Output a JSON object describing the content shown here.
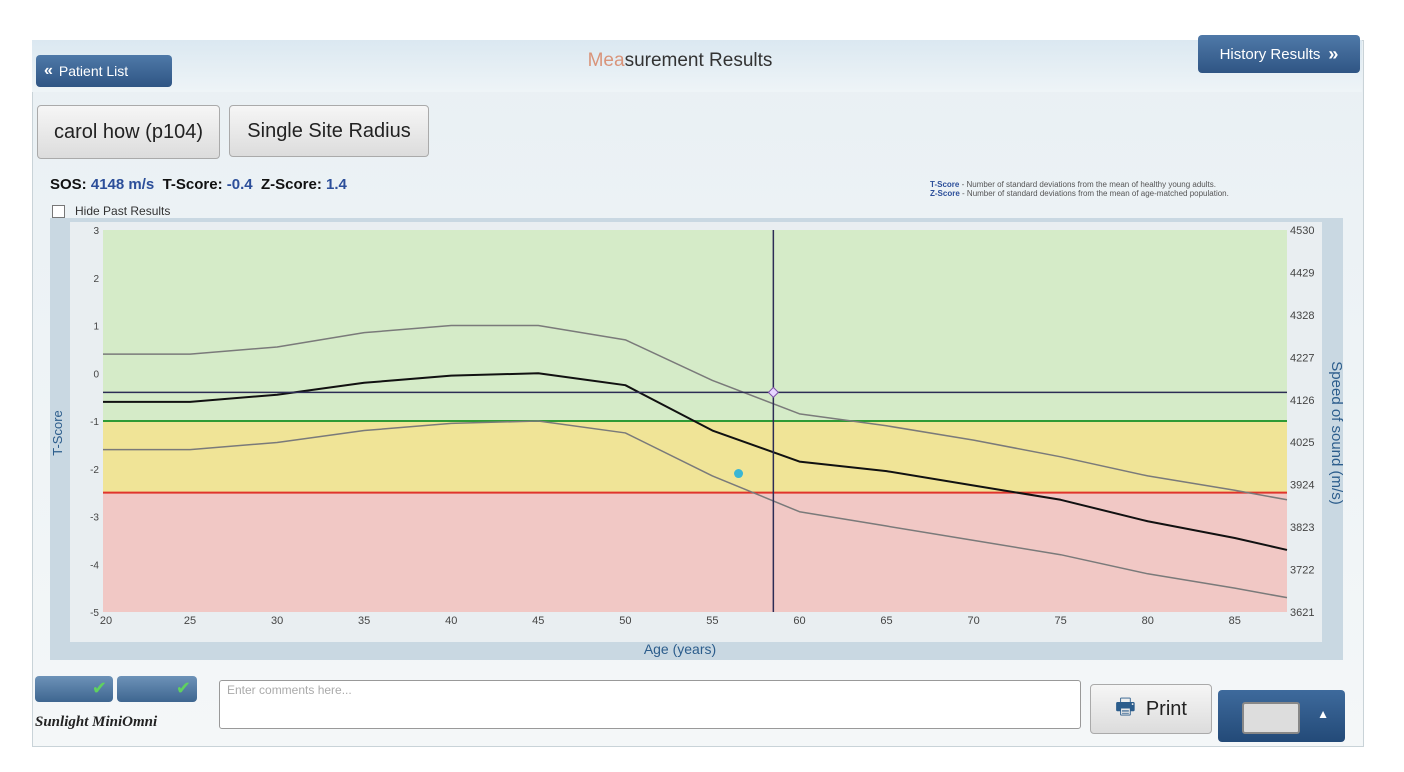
{
  "header": {
    "back_button": "Patient List",
    "title_light": "Mea",
    "title": "surement Results",
    "history_button": "History Results"
  },
  "patient": "carol how (p104)",
  "site": "Single Site Radius",
  "results": {
    "sos_label": "SOS:",
    "sos": "4148 m/s",
    "t_label": "T-Score:",
    "t": "-0.4",
    "z_label": "Z-Score:",
    "z": "1.4"
  },
  "definitions": [
    {
      "term": "T-Score",
      "text": "- Number of standard deviations from the mean of healthy young adults."
    },
    {
      "term": "Z-Score",
      "text": "- Number of standard deviations from the mean of age-matched population."
    }
  ],
  "hide_past": "Hide Past Results",
  "chart_data": {
    "type": "line",
    "x_label": "Age (years)",
    "y_label": "T-Score",
    "y2_label": "Speed of sound (m/s)",
    "x": [
      20,
      25,
      30,
      35,
      40,
      45,
      50,
      55,
      60,
      65,
      70,
      75,
      80,
      85,
      88
    ],
    "series": [
      {
        "color": "#7a7a7a",
        "values": [
          0.4,
          0.4,
          0.55,
          0.85,
          1.0,
          1.0,
          0.7,
          -0.15,
          -0.85,
          -1.1,
          -1.4,
          -1.75,
          -2.15,
          -2.45,
          -2.65
        ]
      },
      {
        "color": "#111111",
        "values": [
          -0.6,
          -0.6,
          -0.45,
          -0.2,
          -0.05,
          0,
          -0.25,
          -1.2,
          -1.85,
          -2.05,
          -2.35,
          -2.65,
          -3.1,
          -3.45,
          -3.7
        ]
      },
      {
        "color": "#7a7a7a",
        "values": [
          -1.6,
          -1.6,
          -1.45,
          -1.2,
          -1.05,
          -1.0,
          -1.25,
          -2.15,
          -2.9,
          -3.2,
          -3.5,
          -3.8,
          -4.2,
          -4.5,
          -4.7
        ]
      }
    ],
    "thresholds": [
      {
        "value": -1,
        "color": "#2f9a35"
      },
      {
        "value": -2.5,
        "color": "#e0342c"
      }
    ],
    "band_colors": [
      "#d5ebc8",
      "#f0e497",
      "#f1c8c5"
    ],
    "measurement": {
      "x": 58.5,
      "y": -0.4,
      "color": "#2c2c55"
    },
    "past_points": [
      {
        "x": 56.5,
        "y": -2.1,
        "color": "#3ab6d4"
      }
    ],
    "xlim": [
      20,
      88
    ],
    "xticks": [
      20,
      25,
      30,
      35,
      40,
      45,
      50,
      55,
      60,
      65,
      70,
      75,
      80,
      85
    ],
    "ylim": [
      -5,
      3
    ],
    "yticks": [
      -5,
      -4,
      -3,
      -2,
      -1,
      0,
      1,
      2,
      3
    ],
    "y2lim": [
      3621,
      4530
    ],
    "y2ticks": [
      3621,
      3722,
      3823,
      3924,
      4025,
      4126,
      4227,
      4328,
      4429,
      4530
    ]
  },
  "footer": {
    "logo": "Sunlight MiniOmni",
    "comments_placeholder": "Enter comments here...",
    "print": "Print"
  }
}
